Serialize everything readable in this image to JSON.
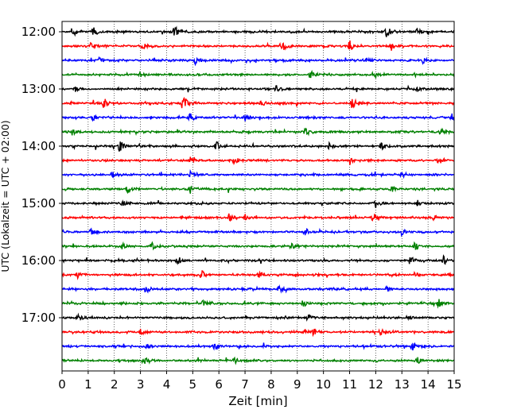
{
  "chart_data": {
    "type": "line",
    "title": "",
    "xlabel": "Zeit  [min]",
    "ylabel": "UTC (Lokalzeit = UTC + 02:00)",
    "xlim": [
      0,
      15
    ],
    "x_ticks": [
      0,
      1,
      2,
      3,
      4,
      5,
      6,
      7,
      8,
      9,
      10,
      11,
      12,
      13,
      14,
      15
    ],
    "trace_start_utc": "12:00",
    "trace_interval_minutes": 15,
    "trace_count": 24,
    "y_tick_labels": [
      "12:00",
      "13:00",
      "14:00",
      "15:00",
      "16:00",
      "17:00"
    ],
    "trace_colors": [
      "#000000",
      "#ff0000",
      "#0000ff",
      "#008000"
    ],
    "grid": "vertical dotted at each minute",
    "legend": "none",
    "series": [
      {
        "start": "12:00",
        "events": [
          {
            "x": 0.4,
            "a": 0.4
          },
          {
            "x": 1.2,
            "a": 0.45
          },
          {
            "x": 4.3,
            "a": 0.5
          },
          {
            "x": 12.4,
            "a": 0.45
          },
          {
            "x": 13.6,
            "a": 0.3
          }
        ]
      },
      {
        "start": "12:15",
        "events": [
          {
            "x": 1.1,
            "a": 0.3
          },
          {
            "x": 3.1,
            "a": 0.35
          },
          {
            "x": 8.4,
            "a": 0.55
          },
          {
            "x": 11.0,
            "a": 0.5
          },
          {
            "x": 12.6,
            "a": 0.3
          }
        ]
      },
      {
        "start": "12:30",
        "events": [
          {
            "x": 1.4,
            "a": 0.3
          },
          {
            "x": 5.1,
            "a": 0.3
          },
          {
            "x": 11.7,
            "a": 0.45
          },
          {
            "x": 13.8,
            "a": 0.25
          }
        ]
      },
      {
        "start": "12:45",
        "events": [
          {
            "x": 3.0,
            "a": 0.3
          },
          {
            "x": 9.5,
            "a": 0.4
          },
          {
            "x": 12.0,
            "a": 0.25
          }
        ]
      },
      {
        "start": "13:00",
        "events": [
          {
            "x": 0.5,
            "a": 0.25
          },
          {
            "x": 8.2,
            "a": 0.3
          },
          {
            "x": 13.6,
            "a": 0.3
          }
        ]
      },
      {
        "start": "13:15",
        "events": [
          {
            "x": 1.6,
            "a": 0.45
          },
          {
            "x": 4.6,
            "a": 0.85
          },
          {
            "x": 7.6,
            "a": 0.3
          },
          {
            "x": 11.1,
            "a": 0.45
          }
        ]
      },
      {
        "start": "13:30",
        "events": [
          {
            "x": 1.2,
            "a": 0.3
          },
          {
            "x": 4.9,
            "a": 0.35
          },
          {
            "x": 7.0,
            "a": 0.25
          },
          {
            "x": 14.9,
            "a": 0.3
          }
        ]
      },
      {
        "start": "13:45",
        "events": [
          {
            "x": 0.4,
            "a": 0.3
          },
          {
            "x": 9.3,
            "a": 0.3
          },
          {
            "x": 14.5,
            "a": 0.3
          }
        ]
      },
      {
        "start": "14:00",
        "events": [
          {
            "x": 2.2,
            "a": 0.45
          },
          {
            "x": 5.9,
            "a": 0.45
          },
          {
            "x": 10.2,
            "a": 0.25
          },
          {
            "x": 12.2,
            "a": 0.3
          }
        ]
      },
      {
        "start": "14:15",
        "events": [
          {
            "x": 4.9,
            "a": 0.35
          },
          {
            "x": 6.6,
            "a": 0.3
          },
          {
            "x": 11.0,
            "a": 0.35
          },
          {
            "x": 14.4,
            "a": 0.35
          }
        ]
      },
      {
        "start": "14:30",
        "events": [
          {
            "x": 1.9,
            "a": 0.25
          },
          {
            "x": 4.9,
            "a": 0.25
          },
          {
            "x": 13.0,
            "a": 0.25
          }
        ]
      },
      {
        "start": "14:45",
        "events": [
          {
            "x": 2.5,
            "a": 0.4
          },
          {
            "x": 4.9,
            "a": 0.3
          },
          {
            "x": 12.6,
            "a": 0.25
          }
        ]
      },
      {
        "start": "15:00",
        "events": [
          {
            "x": 2.3,
            "a": 0.25
          },
          {
            "x": 12.0,
            "a": 0.35
          },
          {
            "x": 13.6,
            "a": 0.25
          }
        ]
      },
      {
        "start": "15:15",
        "events": [
          {
            "x": 6.4,
            "a": 0.4
          },
          {
            "x": 7.0,
            "a": 0.35
          },
          {
            "x": 11.9,
            "a": 0.4
          },
          {
            "x": 14.2,
            "a": 0.35
          }
        ]
      },
      {
        "start": "15:30",
        "events": [
          {
            "x": 1.1,
            "a": 0.25
          },
          {
            "x": 9.3,
            "a": 0.35
          },
          {
            "x": 13.0,
            "a": 0.25
          }
        ]
      },
      {
        "start": "15:45",
        "events": [
          {
            "x": 2.3,
            "a": 0.3
          },
          {
            "x": 3.4,
            "a": 0.45
          },
          {
            "x": 8.8,
            "a": 0.35
          },
          {
            "x": 13.5,
            "a": 0.3
          }
        ]
      },
      {
        "start": "16:00",
        "events": [
          {
            "x": 4.4,
            "a": 0.4
          },
          {
            "x": 13.3,
            "a": 0.4
          },
          {
            "x": 14.6,
            "a": 0.45
          }
        ]
      },
      {
        "start": "16:15",
        "events": [
          {
            "x": 0.6,
            "a": 0.3
          },
          {
            "x": 5.3,
            "a": 0.6
          },
          {
            "x": 7.5,
            "a": 0.4
          },
          {
            "x": 13.5,
            "a": 0.25
          }
        ]
      },
      {
        "start": "16:30",
        "events": [
          {
            "x": 3.2,
            "a": 0.3
          },
          {
            "x": 8.3,
            "a": 0.3
          },
          {
            "x": 12.4,
            "a": 0.25
          }
        ]
      },
      {
        "start": "16:45",
        "events": [
          {
            "x": 5.4,
            "a": 0.25
          },
          {
            "x": 9.2,
            "a": 0.25
          },
          {
            "x": 14.4,
            "a": 0.35
          }
        ]
      },
      {
        "start": "17:00",
        "events": [
          {
            "x": 0.6,
            "a": 0.3
          },
          {
            "x": 9.4,
            "a": 0.35
          },
          {
            "x": 13.2,
            "a": 0.25
          }
        ]
      },
      {
        "start": "17:15",
        "events": [
          {
            "x": 3.0,
            "a": 0.25
          },
          {
            "x": 9.6,
            "a": 0.35
          },
          {
            "x": 12.2,
            "a": 0.25
          }
        ]
      },
      {
        "start": "17:30",
        "events": [
          {
            "x": 3.2,
            "a": 0.3
          },
          {
            "x": 5.8,
            "a": 0.25
          },
          {
            "x": 13.4,
            "a": 0.35
          }
        ]
      },
      {
        "start": "17:45",
        "events": [
          {
            "x": 3.2,
            "a": 0.25
          },
          {
            "x": 6.6,
            "a": 0.25
          },
          {
            "x": 13.6,
            "a": 0.25
          }
        ]
      }
    ]
  }
}
